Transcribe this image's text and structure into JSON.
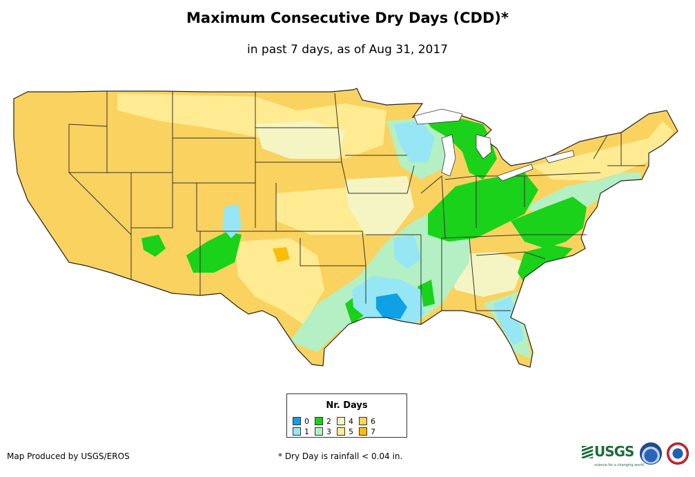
{
  "title": "Maximum Consecutive Dry Days (CDD)*",
  "subtitle": "in past 7 days, as of Aug 31, 2017",
  "legend": {
    "title": "Nr. Days",
    "items": [
      {
        "label": "0",
        "color": "#0fa0e6"
      },
      {
        "label": "1",
        "color": "#96e6f5"
      },
      {
        "label": "2",
        "color": "#19d219"
      },
      {
        "label": "3",
        "color": "#b4f0c3"
      },
      {
        "label": "4",
        "color": "#f5f5c3"
      },
      {
        "label": "5",
        "color": "#ffeb91"
      },
      {
        "label": "6",
        "color": "#fad25f"
      },
      {
        "label": "7",
        "color": "#fabe0a"
      }
    ]
  },
  "credit": "Map Produced by USGS/EROS",
  "footnote": "* Dry Day is rainfall < 0.04 in.",
  "logos": {
    "usgs": "USGS",
    "usgs_tagline": "science for a changing world",
    "noaa": "noaa-logo",
    "nws": "national-weather-service-logo"
  }
}
